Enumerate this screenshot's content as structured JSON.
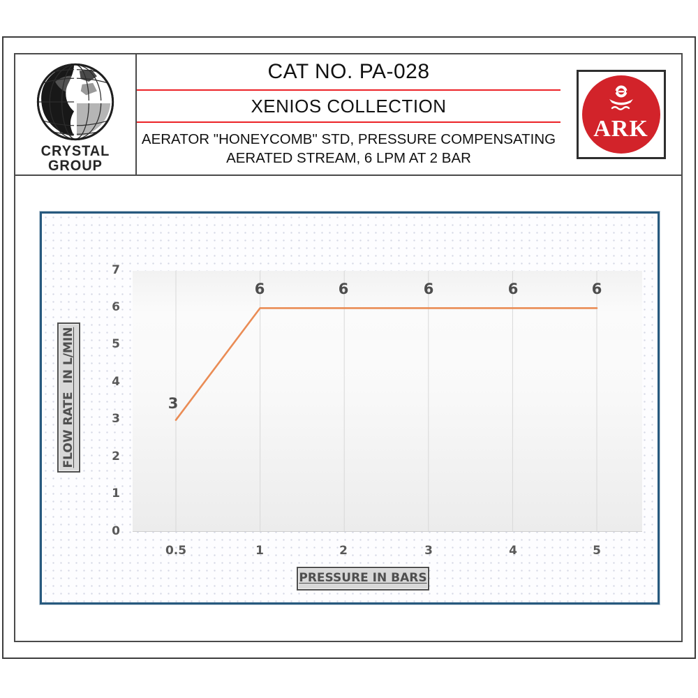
{
  "header": {
    "logo_left": {
      "line1": "CRYSTAL",
      "line2": "GROUP"
    },
    "center": {
      "cat_no": "CAT NO. PA-028",
      "collection": "XENIOS COLLECTION",
      "desc1": "AERATOR \"HONEYCOMB\" STD, PRESSURE COMPENSATING",
      "desc2": "AERATED STREAM, 6 LPM AT 2 BAR"
    },
    "logo_right": {
      "text": "ARK"
    }
  },
  "colors": {
    "header_divider_red": "#EC2227",
    "ark_red": "#D2232A",
    "chart_border_blue": "#27597E",
    "line_orange": "#EA8C55",
    "gridline_gray": "#D8D8D8",
    "label_gray": "#595959",
    "axis_box_bg": "#D8D8D8",
    "axis_box_border": "#4F4F4F"
  },
  "chart_data": {
    "type": "line",
    "title": "",
    "categories": [
      "0.5",
      "1",
      "2",
      "3",
      "4",
      "5"
    ],
    "series": [
      {
        "name": "flow-rate",
        "values": [
          3,
          6,
          6,
          6,
          6,
          6
        ]
      }
    ],
    "data_labels": [
      "3",
      "6",
      "6",
      "6",
      "6",
      "6"
    ],
    "xlabel": "PRESSURE IN BARS",
    "ylabel": "FLOW RATE  IN L/MIN",
    "y_ticks": [
      "0",
      "1",
      "2",
      "3",
      "4",
      "5",
      "6",
      "7"
    ],
    "ylim": [
      0,
      7
    ],
    "x_axis_type": "category",
    "grid": "vertical-only",
    "legend": "none",
    "line_color": "#EA8C55"
  }
}
